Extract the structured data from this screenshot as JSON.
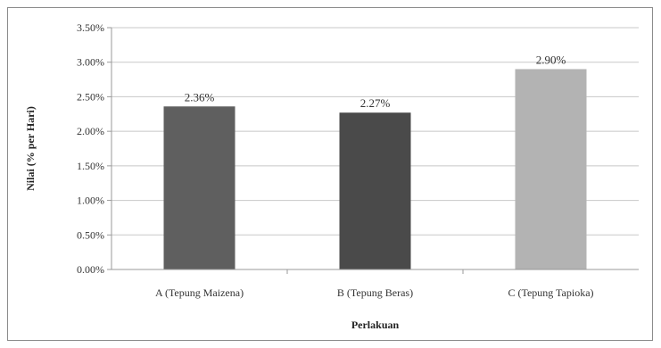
{
  "chart_data": {
    "type": "bar",
    "title": "",
    "xlabel": "Perlakuan",
    "ylabel": "Nilai (% per Hari)",
    "categories": [
      "A (Tepung Maizena)",
      "B (Tepung Beras)",
      "C (Tepung Tapioka)"
    ],
    "values": [
      2.36,
      2.27,
      2.9
    ],
    "data_labels": [
      "2.36%",
      "2.27%",
      "2.90%"
    ],
    "bar_colors": [
      "#5f5f5f",
      "#4a4a4a",
      "#b3b3b3"
    ],
    "ylim": [
      0,
      3.5
    ],
    "yticks": [
      0,
      0.5,
      1.0,
      1.5,
      2.0,
      2.5,
      3.0,
      3.5
    ],
    "ytick_labels": [
      "0.00%",
      "0.50%",
      "1.00%",
      "1.50%",
      "2.00%",
      "2.50%",
      "3.00%",
      "3.50%"
    ],
    "grid": true,
    "legend": "none"
  }
}
